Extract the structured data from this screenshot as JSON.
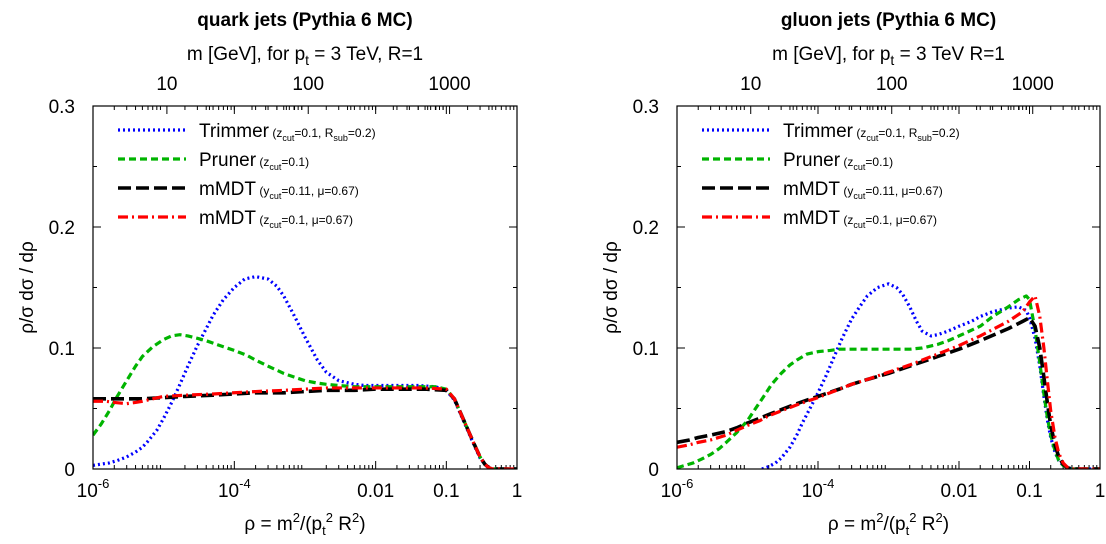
{
  "chart_data": [
    {
      "type": "line",
      "title": "quark jets (Pythia 6 MC)",
      "top_axis": {
        "label": "m [GeV], for p_t = 3 TeV, R=1",
        "label_parts": [
          "m [GeV], for p",
          "t",
          " = 3 TeV, R=1"
        ],
        "ticks": [
          "10",
          "100",
          "1000"
        ],
        "tick_values_gev": [
          10,
          100,
          1000
        ],
        "pt_gev": 3000,
        "R": 1
      },
      "xlabel": "ρ = m²/(p_t² R²)",
      "xlabel_parts": {
        "a": "ρ = m",
        "b": "2",
        "c": "/(p",
        "d": "t",
        "e": "2",
        "f": " R",
        "g": "2",
        "h": ")"
      },
      "ylabel": "ρ/σ dσ / dρ",
      "xscale": "log",
      "xlim": [
        1e-06,
        1
      ],
      "ylim": [
        0,
        0.3
      ],
      "xticks": [
        {
          "v": 1e-06,
          "base": "10",
          "exp": "-6"
        },
        {
          "v": 0.0001,
          "base": "10",
          "exp": "-4"
        },
        {
          "v": 0.01,
          "base": "0.01",
          "exp": ""
        },
        {
          "v": 0.1,
          "base": "0.1",
          "exp": ""
        },
        {
          "v": 1,
          "base": "1",
          "exp": ""
        }
      ],
      "yticks": [
        {
          "v": 0,
          "label": "0"
        },
        {
          "v": 0.1,
          "label": "0.1"
        },
        {
          "v": 0.2,
          "label": "0.2"
        },
        {
          "v": 0.3,
          "label": "0.3"
        }
      ],
      "legend_position": "top-left",
      "series": [
        {
          "name": "Trimmer",
          "legend_name": "Trimmer",
          "params": [
            {
              "t": "(z"
            },
            {
              "t": "cut",
              "sub": true
            },
            {
              "t": "=0.1, R"
            },
            {
              "t": "sub",
              "sub": true
            },
            {
              "t": "=0.2)"
            }
          ],
          "color": "#0000ff",
          "dash": "2,3",
          "width": 3.2,
          "x": [
            1e-06,
            1.3e-06,
            1.7e-06,
            2.2e-06,
            3e-06,
            4e-06,
            5e-06,
            6e-06,
            8e-06,
            1e-05,
            1.3e-05,
            1.7e-05,
            2.2e-05,
            3e-05,
            4e-05,
            5e-05,
            7e-05,
            0.0001,
            0.00014,
            0.0002,
            0.0003,
            0.0004,
            0.0005,
            0.0007,
            0.001,
            0.0015,
            0.002,
            0.003,
            0.005,
            0.007,
            0.01,
            0.02,
            0.04,
            0.07,
            0.1,
            0.13,
            0.16,
            0.2,
            0.25,
            0.3,
            0.35,
            0.4,
            0.45,
            0.5,
            0.7,
            1
          ],
          "y": [
            0.003,
            0.004,
            0.005,
            0.007,
            0.01,
            0.014,
            0.018,
            0.023,
            0.032,
            0.042,
            0.055,
            0.07,
            0.085,
            0.102,
            0.116,
            0.127,
            0.14,
            0.15,
            0.157,
            0.159,
            0.157,
            0.151,
            0.143,
            0.127,
            0.109,
            0.09,
            0.08,
            0.073,
            0.07,
            0.069,
            0.069,
            0.069,
            0.069,
            0.068,
            0.065,
            0.057,
            0.045,
            0.032,
            0.019,
            0.009,
            0.004,
            0.001,
            0.0,
            0.0,
            0.0,
            0.0
          ]
        },
        {
          "name": "Pruner",
          "legend_name": "Pruner",
          "params": [
            {
              "t": "(z"
            },
            {
              "t": "cut",
              "sub": true
            },
            {
              "t": "=0.1)"
            }
          ],
          "color": "#00b400",
          "dash": "7,4",
          "width": 3.2,
          "x": [
            1e-06,
            1.3e-06,
            1.7e-06,
            2.2e-06,
            3e-06,
            4e-06,
            5e-06,
            7e-06,
            1e-05,
            1.3e-05,
            1.7e-05,
            2.2e-05,
            3e-05,
            4e-05,
            5e-05,
            7e-05,
            0.0001,
            0.00015,
            0.0002,
            0.0003,
            0.0005,
            0.0007,
            0.001,
            0.0015,
            0.002,
            0.003,
            0.005,
            0.01,
            0.02,
            0.04,
            0.07,
            0.1,
            0.13,
            0.16,
            0.2,
            0.25,
            0.3,
            0.35,
            0.4,
            0.45,
            0.5,
            0.7,
            1
          ],
          "y": [
            0.028,
            0.037,
            0.048,
            0.06,
            0.073,
            0.085,
            0.093,
            0.101,
            0.107,
            0.11,
            0.111,
            0.11,
            0.108,
            0.106,
            0.104,
            0.101,
            0.098,
            0.094,
            0.09,
            0.085,
            0.079,
            0.076,
            0.073,
            0.071,
            0.07,
            0.069,
            0.068,
            0.068,
            0.068,
            0.068,
            0.068,
            0.066,
            0.058,
            0.046,
            0.033,
            0.02,
            0.01,
            0.004,
            0.001,
            0.0,
            0.0,
            0.0,
            0.0
          ]
        },
        {
          "name": "mMDT",
          "legend_name": "mMDT",
          "params": [
            {
              "t": "(y"
            },
            {
              "t": "cut",
              "sub": true
            },
            {
              "t": "=0.11, μ=0.67)"
            }
          ],
          "color": "#000000",
          "dash": "13,5",
          "width": 3.6,
          "x": [
            1e-06,
            2e-06,
            5e-06,
            1e-05,
            2e-05,
            5e-05,
            0.0001,
            0.0002,
            0.0005,
            0.001,
            0.002,
            0.005,
            0.01,
            0.02,
            0.05,
            0.1,
            0.13,
            0.16,
            0.2,
            0.25,
            0.3,
            0.35,
            0.4,
            0.45,
            0.5,
            0.7,
            1
          ],
          "y": [
            0.058,
            0.058,
            0.058,
            0.059,
            0.06,
            0.061,
            0.062,
            0.063,
            0.063,
            0.064,
            0.065,
            0.065,
            0.066,
            0.066,
            0.066,
            0.065,
            0.058,
            0.046,
            0.033,
            0.02,
            0.01,
            0.004,
            0.001,
            0.0,
            0.0,
            0.0,
            0.0
          ]
        },
        {
          "name": "mMDT",
          "legend_name": "mMDT",
          "params": [
            {
              "t": "(z"
            },
            {
              "t": "cut",
              "sub": true
            },
            {
              "t": "=0.1, μ=0.67)"
            }
          ],
          "color": "#ff0000",
          "dash": "10,4,2,4",
          "width": 3.2,
          "x": [
            1e-06,
            1.5e-06,
            2e-06,
            3e-06,
            4e-06,
            5e-06,
            7e-06,
            1e-05,
            2e-05,
            5e-05,
            0.0001,
            0.0002,
            0.0005,
            0.001,
            0.002,
            0.005,
            0.01,
            0.02,
            0.05,
            0.1,
            0.13,
            0.16,
            0.2,
            0.25,
            0.3,
            0.35,
            0.4,
            0.45,
            0.5,
            0.7,
            1
          ],
          "y": [
            0.056,
            0.056,
            0.055,
            0.054,
            0.055,
            0.056,
            0.058,
            0.06,
            0.061,
            0.062,
            0.063,
            0.064,
            0.065,
            0.066,
            0.067,
            0.067,
            0.067,
            0.067,
            0.067,
            0.066,
            0.058,
            0.046,
            0.033,
            0.02,
            0.01,
            0.004,
            0.001,
            0.0,
            0.0,
            0.0,
            0.0
          ]
        }
      ]
    },
    {
      "type": "line",
      "title": "gluon jets (Pythia 6 MC)",
      "top_axis": {
        "label": "m [GeV], for p_t = 3 TeV R=1",
        "label_parts": [
          "m [GeV], for p",
          "t",
          " = 3 TeV R=1"
        ],
        "ticks": [
          "10",
          "100",
          "1000"
        ],
        "tick_values_gev": [
          10,
          100,
          1000
        ],
        "pt_gev": 3000,
        "R": 1
      },
      "xlabel": "ρ = m²/(p_t² R²)",
      "xlabel_parts": {
        "a": "ρ = m",
        "b": "2",
        "c": "/(p",
        "d": "t",
        "e": "2",
        "f": " R",
        "g": "2",
        "h": ")"
      },
      "ylabel": "ρ/σ dσ / dρ",
      "xscale": "log",
      "xlim": [
        1e-06,
        1
      ],
      "ylim": [
        0,
        0.3
      ],
      "xticks": [
        {
          "v": 1e-06,
          "base": "10",
          "exp": "-6"
        },
        {
          "v": 0.0001,
          "base": "10",
          "exp": "-4"
        },
        {
          "v": 0.01,
          "base": "0.01",
          "exp": ""
        },
        {
          "v": 0.1,
          "base": "0.1",
          "exp": ""
        },
        {
          "v": 1,
          "base": "1",
          "exp": ""
        }
      ],
      "yticks": [
        {
          "v": 0,
          "label": "0"
        },
        {
          "v": 0.1,
          "label": "0.1"
        },
        {
          "v": 0.2,
          "label": "0.2"
        },
        {
          "v": 0.3,
          "label": "0.3"
        }
      ],
      "legend_position": "top-left",
      "series": [
        {
          "name": "Trimmer",
          "legend_name": "Trimmer",
          "params": [
            {
              "t": "(z"
            },
            {
              "t": "cut",
              "sub": true
            },
            {
              "t": "=0.1, R"
            },
            {
              "t": "sub",
              "sub": true
            },
            {
              "t": "=0.2)"
            }
          ],
          "color": "#0000ff",
          "dash": "2,3",
          "width": 3.2,
          "x": [
            1.6e-05,
            2e-05,
            2.5e-05,
            3e-05,
            4e-05,
            5e-05,
            6e-05,
            8e-05,
            0.0001,
            0.00013,
            0.00017,
            0.00022,
            0.0003,
            0.0004,
            0.0005,
            0.0007,
            0.001,
            0.0013,
            0.0016,
            0.002,
            0.0025,
            0.003,
            0.004,
            0.005,
            0.007,
            0.01,
            0.015,
            0.02,
            0.03,
            0.05,
            0.07,
            0.09,
            0.1,
            0.12,
            0.14,
            0.16,
            0.18,
            0.2,
            0.23,
            0.26,
            0.3,
            0.35,
            0.4,
            0.45,
            0.5,
            0.7,
            1
          ],
          "y": [
            0.0,
            0.002,
            0.005,
            0.009,
            0.018,
            0.028,
            0.038,
            0.052,
            0.063,
            0.077,
            0.093,
            0.108,
            0.124,
            0.135,
            0.143,
            0.15,
            0.153,
            0.15,
            0.144,
            0.134,
            0.122,
            0.114,
            0.11,
            0.111,
            0.114,
            0.118,
            0.122,
            0.126,
            0.13,
            0.133,
            0.134,
            0.131,
            0.125,
            0.108,
            0.085,
            0.06,
            0.04,
            0.026,
            0.014,
            0.007,
            0.003,
            0.001,
            0.0,
            0.0,
            0.0,
            0.0,
            0.0
          ]
        },
        {
          "name": "Pruner",
          "legend_name": "Pruner",
          "params": [
            {
              "t": "(z"
            },
            {
              "t": "cut",
              "sub": true
            },
            {
              "t": "=0.1)"
            }
          ],
          "color": "#00b400",
          "dash": "7,4",
          "width": 3.2,
          "x": [
            1e-06,
            1.3e-06,
            1.7e-06,
            2.2e-06,
            3e-06,
            4e-06,
            5e-06,
            7e-06,
            1e-05,
            1.3e-05,
            1.7e-05,
            2.2e-05,
            3e-05,
            4e-05,
            5e-05,
            7e-05,
            0.0001,
            0.00015,
            0.0002,
            0.0003,
            0.0005,
            0.0007,
            0.001,
            0.002,
            0.003,
            0.005,
            0.007,
            0.01,
            0.02,
            0.03,
            0.05,
            0.07,
            0.09,
            0.1,
            0.12,
            0.14,
            0.16,
            0.18,
            0.2,
            0.23,
            0.26,
            0.3,
            0.35,
            0.4,
            0.45,
            0.5,
            0.7,
            1
          ],
          "y": [
            0.001,
            0.003,
            0.005,
            0.008,
            0.012,
            0.017,
            0.022,
            0.03,
            0.04,
            0.05,
            0.06,
            0.07,
            0.079,
            0.086,
            0.09,
            0.095,
            0.097,
            0.098,
            0.099,
            0.099,
            0.099,
            0.099,
            0.099,
            0.099,
            0.1,
            0.103,
            0.106,
            0.11,
            0.118,
            0.126,
            0.134,
            0.14,
            0.143,
            0.14,
            0.115,
            0.088,
            0.062,
            0.042,
            0.028,
            0.015,
            0.007,
            0.003,
            0.001,
            0.0,
            0.0,
            0.0,
            0.0,
            0.0
          ]
        },
        {
          "name": "mMDT",
          "legend_name": "mMDT",
          "params": [
            {
              "t": "(y"
            },
            {
              "t": "cut",
              "sub": true
            },
            {
              "t": "=0.11, μ=0.67)"
            }
          ],
          "color": "#000000",
          "dash": "13,5",
          "width": 3.6,
          "x": [
            1e-06,
            1.5e-06,
            2e-06,
            3e-06,
            5e-06,
            7e-06,
            1e-05,
            1.5e-05,
            2e-05,
            3e-05,
            5e-05,
            7e-05,
            0.0001,
            0.0002,
            0.0003,
            0.0005,
            0.001,
            0.002,
            0.005,
            0.01,
            0.02,
            0.05,
            0.08,
            0.1,
            0.12,
            0.14,
            0.16,
            0.18,
            0.2,
            0.23,
            0.26,
            0.3,
            0.35,
            0.4,
            0.45,
            0.5,
            0.7,
            1
          ],
          "y": [
            0.022,
            0.024,
            0.026,
            0.028,
            0.031,
            0.034,
            0.038,
            0.042,
            0.045,
            0.049,
            0.054,
            0.057,
            0.06,
            0.066,
            0.07,
            0.074,
            0.079,
            0.085,
            0.093,
            0.099,
            0.106,
            0.116,
            0.122,
            0.125,
            0.118,
            0.1,
            0.076,
            0.054,
            0.036,
            0.02,
            0.01,
            0.004,
            0.001,
            0.0,
            0.0,
            0.0,
            0.0,
            0.0
          ]
        },
        {
          "name": "mMDT",
          "legend_name": "mMDT",
          "params": [
            {
              "t": "(z"
            },
            {
              "t": "cut",
              "sub": true
            },
            {
              "t": "=0.1, μ=0.67)"
            }
          ],
          "color": "#ff0000",
          "dash": "10,4,2,4",
          "width": 3.2,
          "x": [
            1e-06,
            1.5e-06,
            2e-06,
            3e-06,
            5e-06,
            7e-06,
            1e-05,
            1.5e-05,
            2e-05,
            3e-05,
            5e-05,
            7e-05,
            0.0001,
            0.0002,
            0.0003,
            0.0005,
            0.001,
            0.002,
            0.005,
            0.01,
            0.02,
            0.05,
            0.08,
            0.1,
            0.12,
            0.14,
            0.16,
            0.18,
            0.2,
            0.23,
            0.26,
            0.3,
            0.35,
            0.4,
            0.45,
            0.5,
            0.7,
            1
          ],
          "y": [
            0.018,
            0.02,
            0.022,
            0.024,
            0.028,
            0.032,
            0.036,
            0.04,
            0.044,
            0.048,
            0.053,
            0.056,
            0.059,
            0.066,
            0.07,
            0.074,
            0.08,
            0.086,
            0.095,
            0.102,
            0.11,
            0.122,
            0.13,
            0.138,
            0.143,
            0.126,
            0.1,
            0.072,
            0.048,
            0.026,
            0.013,
            0.005,
            0.001,
            0.0,
            0.0,
            0.0,
            0.0,
            0.0
          ]
        }
      ]
    }
  ]
}
